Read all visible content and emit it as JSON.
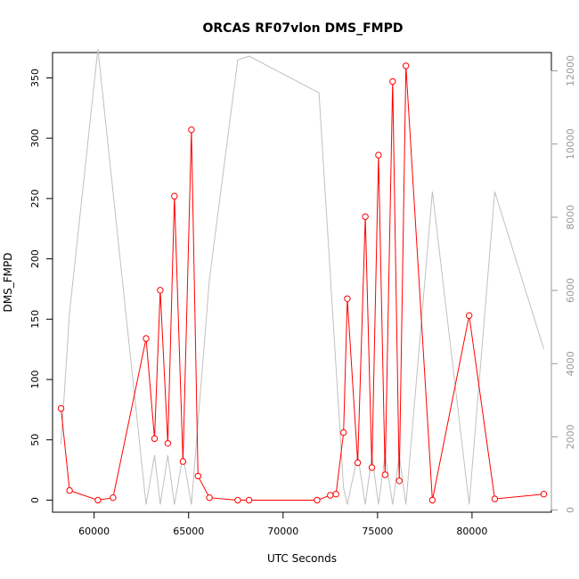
{
  "chart_data": {
    "type": "line",
    "title": "ORCAS RF07vlon DMS_FMPD",
    "xlabel": "UTC Seconds",
    "ylabel": "DMS_FMPD",
    "xlim": [
      57800,
      84200
    ],
    "ylim": [
      -10,
      371
    ],
    "ylim_right": [
      -60,
      12500
    ],
    "x_ticks": [
      60000,
      65000,
      70000,
      75000,
      80000
    ],
    "x_tick_labels": [
      "60000",
      "65000",
      "70000",
      "75000",
      "80000"
    ],
    "y_ticks": [
      0,
      50,
      100,
      150,
      200,
      250,
      300,
      350
    ],
    "y_tick_labels": [
      "0",
      "50",
      "100",
      "150",
      "200",
      "250",
      "300",
      "350"
    ],
    "y_right_ticks": [
      0,
      2000,
      4000,
      6000,
      8000,
      10000,
      12000
    ],
    "y_right_tick_labels": [
      "0",
      "2000",
      "4000",
      "6000",
      "8000",
      "10000",
      "12000"
    ],
    "grid": false,
    "series": [
      {
        "axis": "left",
        "color": "#ff0000",
        "markers": "open-circle",
        "x": [
          58250,
          58700,
          60200,
          61000,
          62750,
          63200,
          63500,
          63900,
          64250,
          64700,
          65150,
          65500,
          66100,
          67600,
          68200,
          71800,
          72500,
          72800,
          73200,
          73400,
          73950,
          74350,
          74700,
          75050,
          75400,
          75800,
          76150,
          76500,
          77900,
          79850,
          81200,
          83800
        ],
        "y": [
          76,
          8,
          0,
          2,
          134,
          51,
          174,
          47,
          252,
          32,
          307,
          20,
          2,
          0,
          0,
          0,
          4,
          5,
          56,
          167,
          31,
          235,
          27,
          286,
          21,
          347,
          16,
          360,
          0,
          153,
          1,
          5
        ]
      },
      {
        "axis": "right",
        "color": "#c0c0c0",
        "markers": "none",
        "x": [
          58250,
          58700,
          60200,
          62750,
          63200,
          63500,
          63900,
          64250,
          64700,
          65150,
          66100,
          67600,
          68200,
          71900,
          73200,
          73400,
          73950,
          74350,
          74700,
          75050,
          75400,
          75800,
          76150,
          76500,
          77900,
          79850,
          81200,
          83800
        ],
        "y": [
          1800,
          5400,
          12600,
          150,
          1500,
          150,
          1500,
          150,
          1500,
          150,
          6300,
          12300,
          12400,
          11400,
          600,
          150,
          1500,
          150,
          1500,
          150,
          1500,
          150,
          1500,
          150,
          8700,
          150,
          8700,
          4400
        ]
      }
    ]
  }
}
